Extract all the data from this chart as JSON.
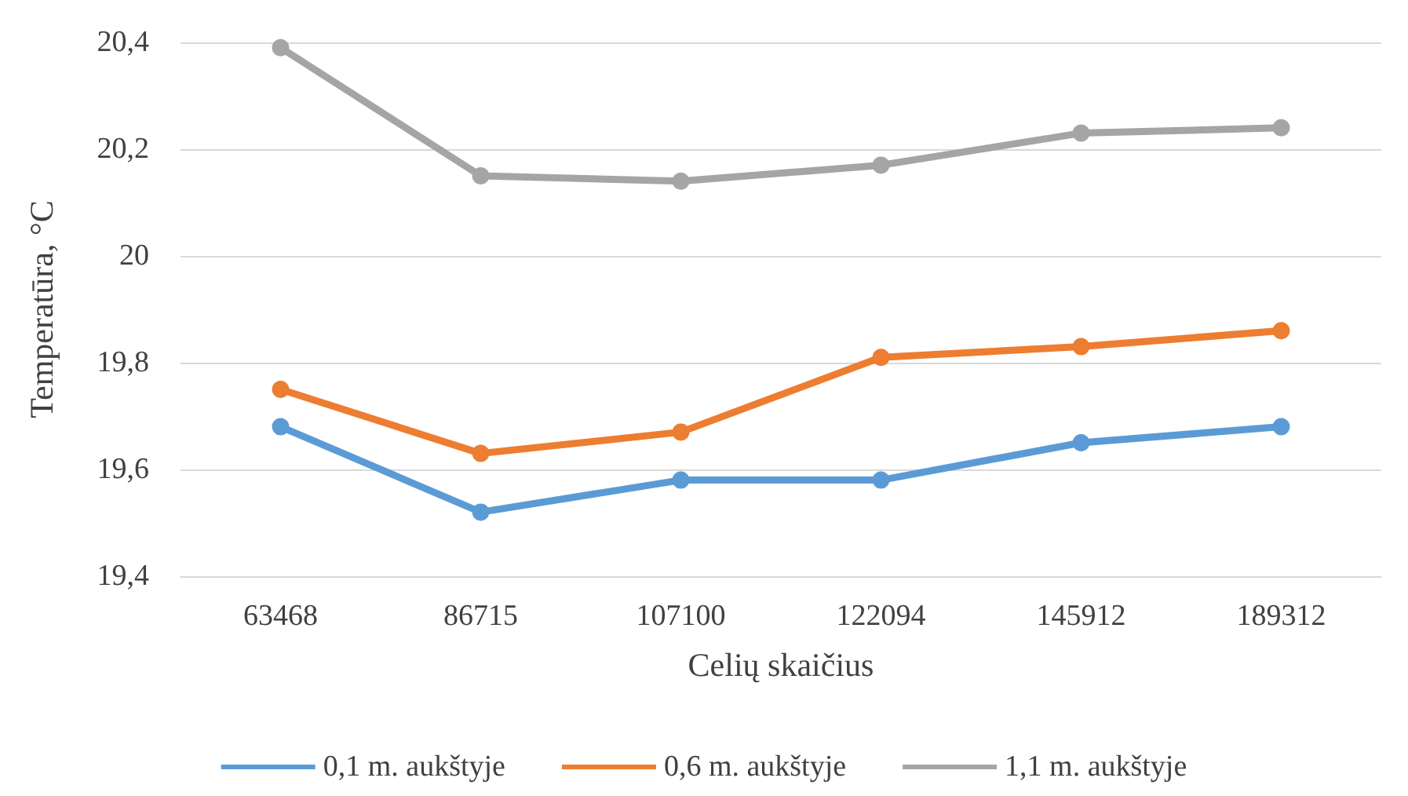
{
  "chart_data": {
    "type": "line",
    "xlabel": "Celių skaičius",
    "ylabel": "Temperatūra, °C",
    "categories": [
      "63468",
      "86715",
      "107100",
      "122094",
      "145912",
      "189312"
    ],
    "series": [
      {
        "name": "0,1 m. aukštyje",
        "color": "#5b9bd5",
        "values": [
          19.68,
          19.52,
          19.58,
          19.58,
          19.65,
          19.68
        ]
      },
      {
        "name": "0,6 m. aukštyje",
        "color": "#ed7d31",
        "values": [
          19.75,
          19.63,
          19.67,
          19.81,
          19.83,
          19.86
        ]
      },
      {
        "name": "1,1 m. aukštyje",
        "color": "#a5a5a5",
        "values": [
          20.39,
          20.15,
          20.14,
          20.17,
          20.23,
          20.24
        ]
      }
    ],
    "ylim": [
      19.4,
      20.4
    ],
    "yticks": [
      {
        "value": 19.4,
        "label": "19,4"
      },
      {
        "value": 19.6,
        "label": "19,6"
      },
      {
        "value": 19.8,
        "label": "19,8"
      },
      20,
      {
        "value": 20.2,
        "label": "20,2"
      },
      {
        "value": 20.4,
        "label": "20,4"
      }
    ],
    "grid": "y",
    "legend": "bottom",
    "marker": "circle",
    "line_style": "solid"
  }
}
